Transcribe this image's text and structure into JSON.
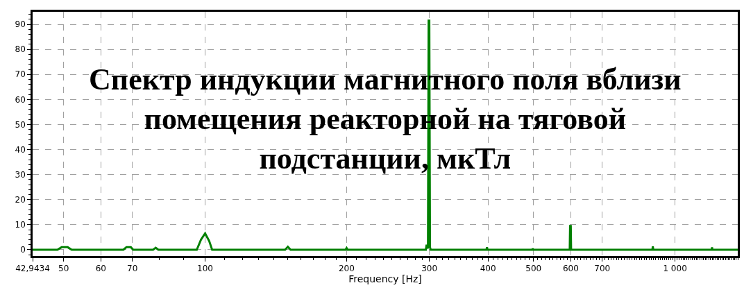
{
  "chart_data": {
    "type": "line",
    "title": "Спектр индукции магнитного поля вблизи помещения реакторной на тяговой подстанции, мкТл",
    "xlabel": "Frequency [Hz]",
    "x": [
      42.9434,
      48.5,
      49.5,
      51,
      52,
      67,
      68,
      69.5,
      70.3,
      77.5,
      78.5,
      79.5,
      96,
      98,
      100,
      102,
      103.5,
      148,
      150,
      152,
      199,
      200,
      201,
      295,
      296,
      298,
      299,
      300,
      301,
      302,
      397,
      398,
      399,
      497,
      498,
      499,
      597,
      598,
      600,
      601,
      895,
      897,
      899,
      1197,
      1199,
      1201,
      1360
    ],
    "series": [
      {
        "color": "#008000",
        "values": [
          0,
          0,
          1,
          1,
          0,
          0,
          1,
          1,
          0,
          0,
          0.8,
          0,
          0,
          4,
          6.5,
          3.5,
          0,
          0,
          1.2,
          0,
          0,
          0.7,
          0,
          0,
          2,
          0.5,
          91.5,
          91.5,
          1,
          0,
          0,
          1,
          0,
          0,
          0.5,
          0,
          0,
          9.5,
          9.5,
          0,
          0,
          1.3,
          0,
          0,
          1,
          0,
          0
        ]
      }
    ],
    "log": "x",
    "xlim": [
      42.9434,
      1360
    ],
    "xticks": [
      {
        "value": 42.9434,
        "label": "42,9434"
      },
      50,
      60,
      70,
      100,
      200,
      300,
      400,
      500,
      600,
      700,
      {
        "value": 1000,
        "label": "1 000"
      }
    ],
    "ylim": [
      -2.5,
      95
    ],
    "yticks": [
      0,
      10,
      20,
      30,
      40,
      50,
      60,
      70,
      80,
      90
    ],
    "grid": true,
    "marker": "none",
    "line_style": "solid"
  }
}
